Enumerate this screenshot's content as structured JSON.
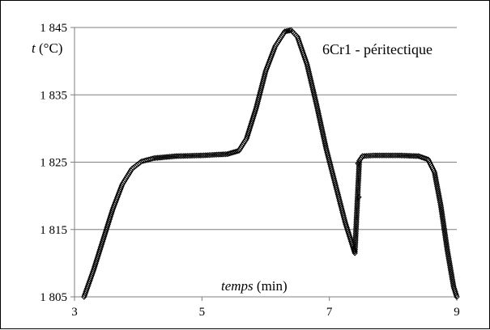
{
  "chart_data": {
    "type": "scatter",
    "title": "",
    "ylabel": {
      "italic": "t",
      "plain": " (°C)"
    },
    "xlabel": {
      "italic": "temps",
      "plain": " (min)"
    },
    "series_label": "6Cr1 - péritectique",
    "xlim": [
      3,
      9
    ],
    "ylim": [
      1805,
      1845
    ],
    "x_ticks": [
      3,
      5,
      7,
      9
    ],
    "x_tick_labels": [
      "3",
      "5",
      "7",
      "9"
    ],
    "y_ticks": [
      1805,
      1815,
      1825,
      1835,
      1845
    ],
    "y_tick_labels": [
      "1 805",
      "1 815",
      "1 825",
      "1 835",
      "1 845"
    ],
    "grid": "horizontal",
    "marker": "diamond",
    "marker_color": "#000000",
    "curve_keypoints": [
      [
        3.15,
        1805.0
      ],
      [
        3.3,
        1809.0
      ],
      [
        3.45,
        1813.5
      ],
      [
        3.6,
        1818.0
      ],
      [
        3.75,
        1821.7
      ],
      [
        3.9,
        1824.0
      ],
      [
        4.05,
        1825.1
      ],
      [
        4.25,
        1825.6
      ],
      [
        4.6,
        1825.9
      ],
      [
        5.0,
        1826.0
      ],
      [
        5.4,
        1826.2
      ],
      [
        5.58,
        1826.7
      ],
      [
        5.7,
        1828.5
      ],
      [
        5.85,
        1833.0
      ],
      [
        6.0,
        1838.5
      ],
      [
        6.15,
        1842.2
      ],
      [
        6.3,
        1844.4
      ],
      [
        6.4,
        1844.6
      ],
      [
        6.5,
        1843.6
      ],
      [
        6.65,
        1839.5
      ],
      [
        6.8,
        1833.5
      ],
      [
        6.95,
        1827.0
      ],
      [
        7.1,
        1821.5
      ],
      [
        7.25,
        1816.0
      ],
      [
        7.4,
        1811.5
      ],
      [
        7.47,
        1825.2
      ],
      [
        7.52,
        1825.9
      ],
      [
        7.7,
        1826.0
      ],
      [
        8.1,
        1826.0
      ],
      [
        8.4,
        1825.9
      ],
      [
        8.55,
        1825.4
      ],
      [
        8.65,
        1823.5
      ],
      [
        8.75,
        1818.5
      ],
      [
        8.85,
        1812.0
      ],
      [
        8.95,
        1806.5
      ],
      [
        9.0,
        1805.0
      ]
    ],
    "isolated_points": [
      [
        7.45,
        1824.8
      ],
      [
        7.46,
        1819.8
      ]
    ]
  }
}
